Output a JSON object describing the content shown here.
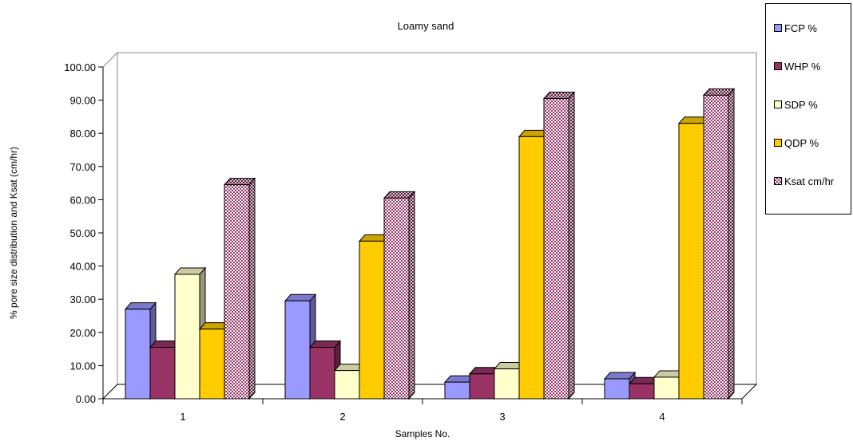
{
  "chart_data": {
    "type": "bar",
    "title": "Loamy sand",
    "xlabel": "Samples No.",
    "ylabel": "% pore size distribution and Ksat (cm/hr)",
    "categories": [
      "1",
      "2",
      "3",
      "4"
    ],
    "ylim": [
      0,
      100
    ],
    "yticks": [
      "0.00",
      "10.00",
      "20.00",
      "30.00",
      "40.00",
      "50.00",
      "60.00",
      "70.00",
      "80.00",
      "90.00",
      "100.00"
    ],
    "legend_position": "top-right",
    "grid": false,
    "series": [
      {
        "name": "FCP %",
        "color": "#9999ff",
        "values": [
          27,
          29.5,
          5,
          6
        ]
      },
      {
        "name": "WHP %",
        "color": "#993366",
        "values": [
          15.5,
          15.5,
          7.5,
          4.5
        ]
      },
      {
        "name": "SDP %",
        "color": "#ffffcc",
        "values": [
          37.5,
          8.5,
          9,
          6.5
        ]
      },
      {
        "name": "QDP %",
        "color": "#ffcc00",
        "values": [
          21,
          47.5,
          79,
          83
        ]
      },
      {
        "name": "Ksat cm/hr",
        "color": "#993366",
        "pattern": "checker",
        "values": [
          64.5,
          60.5,
          90.5,
          91.5
        ]
      }
    ]
  }
}
